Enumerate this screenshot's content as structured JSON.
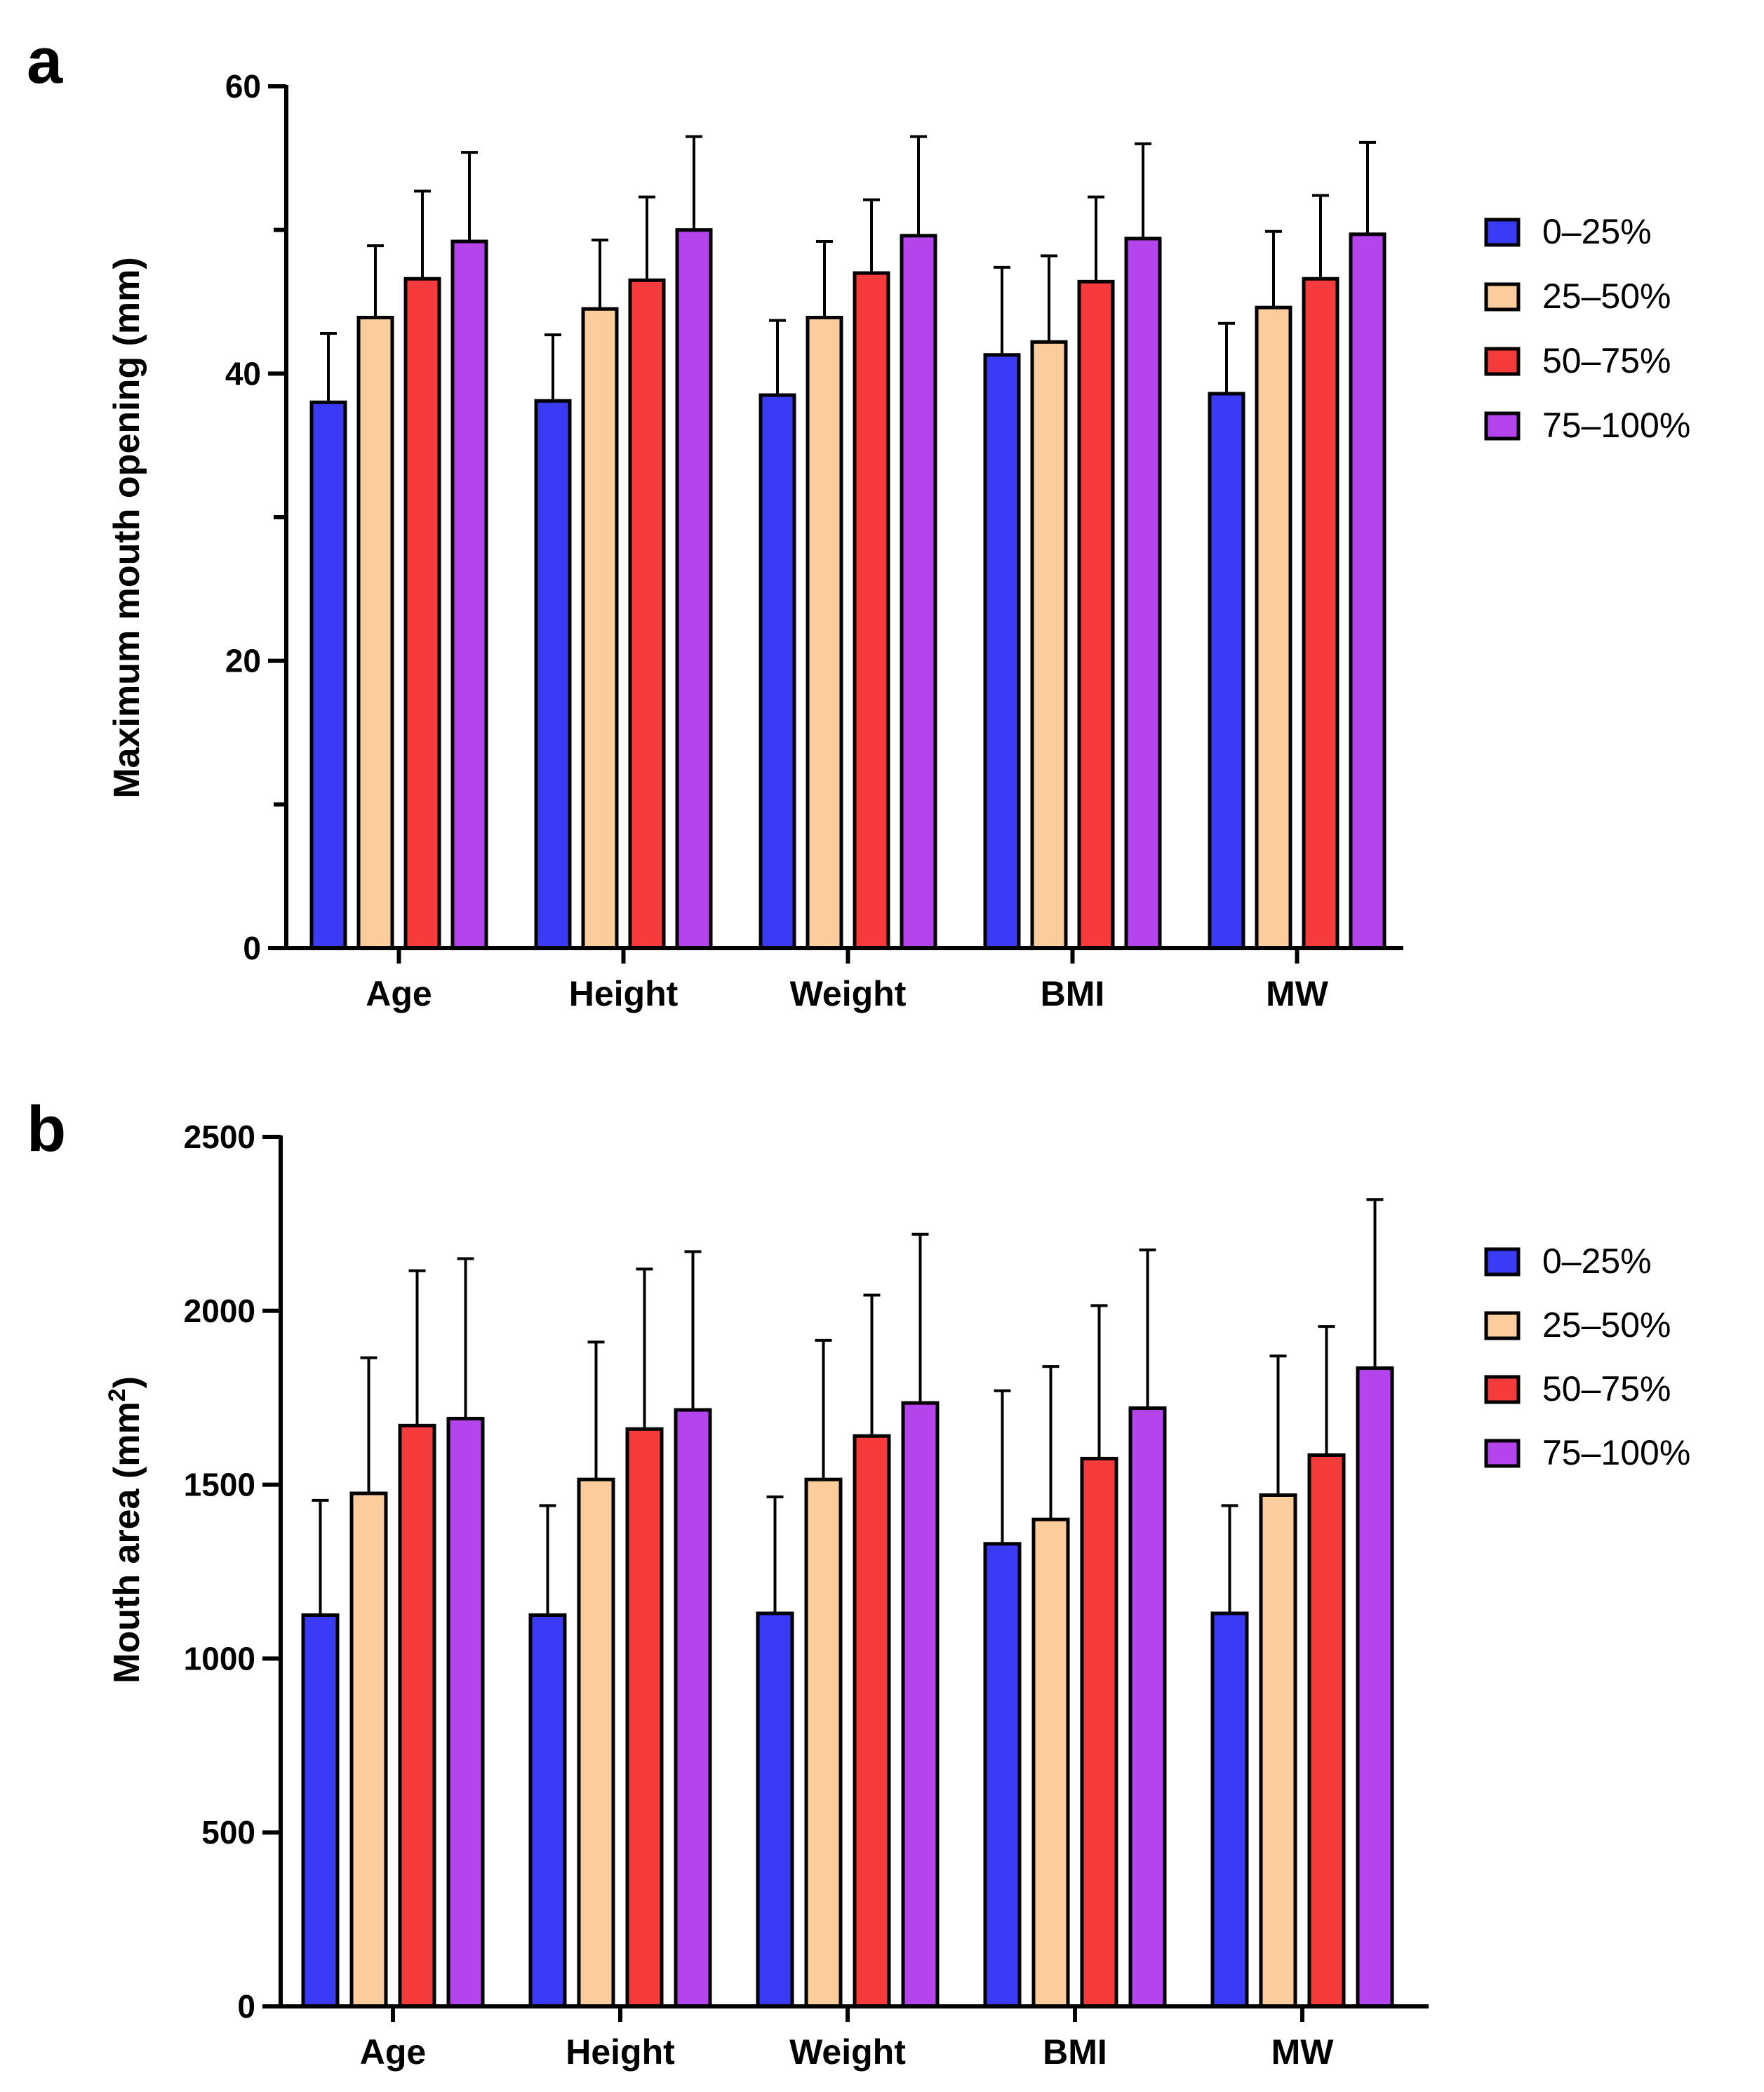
{
  "colors": {
    "0-25": "#3b3bf5",
    "25-50": "#fbcc9c",
    "50-75": "#f53b3b",
    "75-100": "#b444ec",
    "axis": "#000000"
  },
  "chart_data": [
    {
      "panel": "a",
      "type": "bar",
      "title": "",
      "xlabel": "",
      "ylabel": "Maximum mouth opening (mm)",
      "ylim": [
        0,
        60
      ],
      "yticks": [
        0,
        20,
        40,
        60
      ],
      "yticks_labeled": [
        0,
        20,
        40,
        60
      ],
      "minor_step": 10,
      "grid": false,
      "legend_position": "right",
      "categories": [
        "Age",
        "Height",
        "Weight",
        "BMI",
        "MW"
      ],
      "series": [
        {
          "name": "0–25%",
          "color_key": "0-25",
          "values": [
            38.0,
            38.1,
            38.5,
            41.3,
            38.6
          ],
          "errors": [
            4.8,
            4.6,
            5.2,
            6.1,
            4.9
          ]
        },
        {
          "name": "25–50%",
          "color_key": "25-50",
          "values": [
            43.9,
            44.5,
            43.9,
            42.2,
            44.6
          ],
          "errors": [
            5.0,
            4.8,
            5.3,
            6.0,
            5.3
          ]
        },
        {
          "name": "50–75%",
          "color_key": "50-75",
          "values": [
            46.6,
            46.5,
            47.0,
            46.4,
            46.6
          ],
          "errors": [
            6.1,
            5.8,
            5.1,
            5.9,
            5.8
          ]
        },
        {
          "name": "75–100%",
          "color_key": "75-100",
          "values": [
            49.2,
            50.0,
            49.6,
            49.4,
            49.7
          ],
          "errors": [
            6.2,
            6.5,
            6.9,
            6.6,
            6.4
          ]
        }
      ]
    },
    {
      "panel": "b",
      "type": "bar",
      "title": "",
      "xlabel": "",
      "ylabel": "Mouth area (mm",
      "ylabel_sup": "2",
      "ylabel_suffix": ")",
      "ylim": [
        0,
        2500
      ],
      "yticks": [
        0,
        500,
        1000,
        1500,
        2000,
        2500
      ],
      "yticks_labeled": [
        0,
        500,
        1000,
        1500,
        2000,
        2500
      ],
      "minor_step": 500,
      "grid": false,
      "legend_position": "right",
      "categories": [
        "Age",
        "Height",
        "Weight",
        "BMI",
        "MW"
      ],
      "series": [
        {
          "name": "0–25%",
          "color_key": "0-25",
          "values": [
            1125,
            1125,
            1130,
            1330,
            1130
          ],
          "errors": [
            330,
            315,
            335,
            440,
            310
          ]
        },
        {
          "name": "25–50%",
          "color_key": "25-50",
          "values": [
            1475,
            1515,
            1515,
            1400,
            1470
          ],
          "errors": [
            390,
            395,
            400,
            440,
            400
          ]
        },
        {
          "name": "50–75%",
          "color_key": "50-75",
          "values": [
            1670,
            1660,
            1640,
            1575,
            1585
          ],
          "errors": [
            445,
            460,
            405,
            440,
            370
          ]
        },
        {
          "name": "75–100%",
          "color_key": "75-100",
          "values": [
            1690,
            1715,
            1735,
            1720,
            1835
          ],
          "errors": [
            460,
            455,
            485,
            455,
            485
          ]
        }
      ]
    }
  ]
}
